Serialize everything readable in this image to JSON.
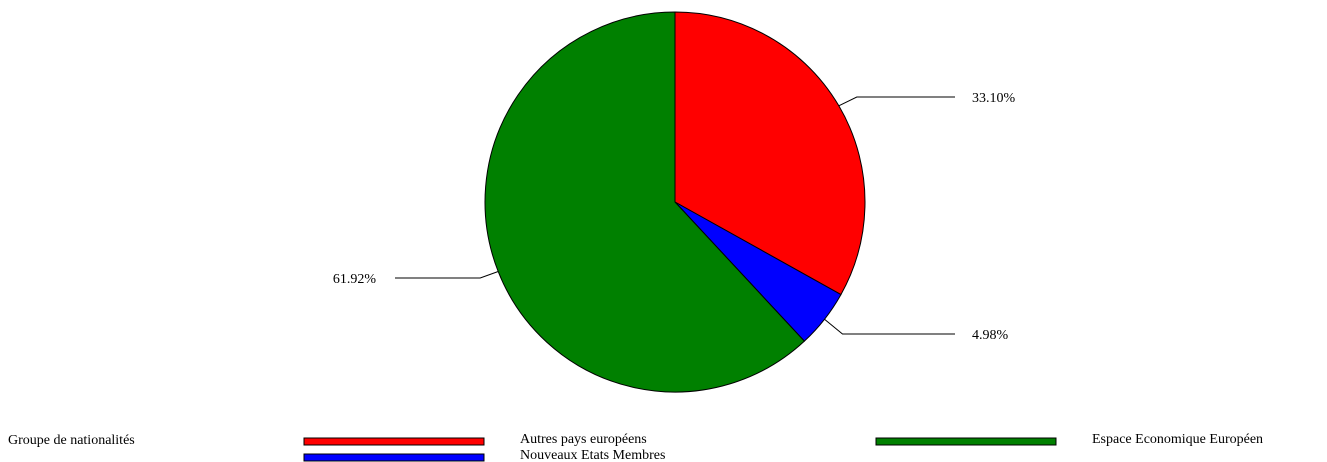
{
  "chart_data": {
    "type": "pie",
    "legend_title": "Groupe de nationalités",
    "slices": [
      {
        "label": "Autres pays européens",
        "value": 33.1,
        "display": "33.10%",
        "color": "#ff0000"
      },
      {
        "label": "Nouveaux Etats Membres",
        "value": 4.98,
        "display": "4.98%",
        "color": "#0000ff"
      },
      {
        "label": "Espace Economique Européen",
        "value": 61.92,
        "display": "61.92%",
        "color": "#008000"
      }
    ],
    "legend_placement": "bottom"
  }
}
